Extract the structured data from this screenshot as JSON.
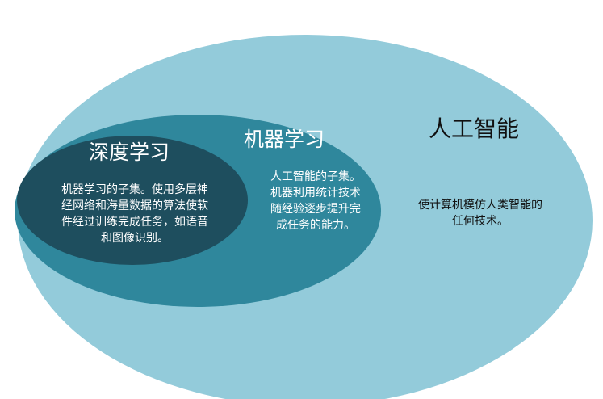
{
  "ai": {
    "title": "人工智能",
    "description": [
      "使计算机模仿人类智能的",
      "任何技术。"
    ],
    "fill": "#93CBDA"
  },
  "ml": {
    "title": "机器学习",
    "description": [
      "人工智能的子集。",
      "机器利用统计技术",
      "随经验逐步提升完",
      "成任务的能力。"
    ],
    "fill": "#2F879C"
  },
  "dl": {
    "title": "深度学习",
    "description": [
      "机器学习的子集。使用多层神",
      "经网络和海量数据的算法使软",
      "件经过训练完成任务，如语音",
      "和图像识别。"
    ],
    "fill": "#1E4E5E"
  }
}
